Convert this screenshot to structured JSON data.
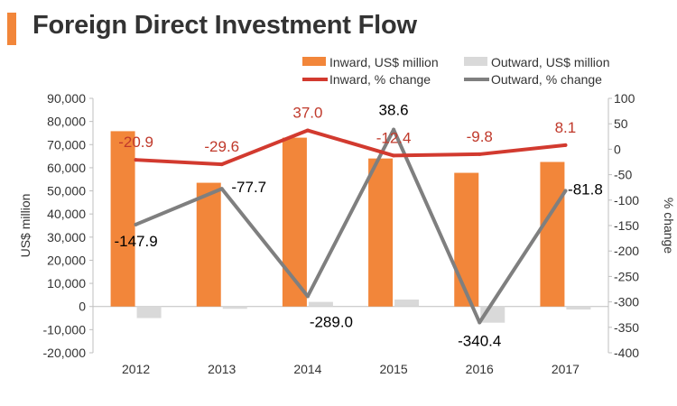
{
  "colors": {
    "inward": "#F2863A",
    "outward": "#D9D9D9",
    "inward_line": "#D23A2F",
    "outward_line": "#7F7F7F",
    "title_bar": "#F2863A",
    "axis": "#BFBFBF",
    "text": "#333333",
    "inward_label": "#C0392B",
    "outward_label": "#000000"
  },
  "chart_data": {
    "type": "bar",
    "title": "Foreign Direct Investment Flow",
    "categories": [
      "2012",
      "2013",
      "2014",
      "2015",
      "2016",
      "2017"
    ],
    "series": [
      {
        "name": "Inward, US$ million",
        "kind": "bar",
        "axis": "left",
        "values": [
          75800,
          53500,
          73000,
          64000,
          57800,
          62500
        ]
      },
      {
        "name": "Outward, US$ million",
        "kind": "bar",
        "axis": "left",
        "values": [
          -5000,
          -1000,
          2000,
          3000,
          -7000,
          -1300
        ]
      },
      {
        "name": "Inward, % change",
        "kind": "line",
        "axis": "right",
        "values": [
          -20.9,
          -29.6,
          37.0,
          -12.4,
          -9.8,
          8.1
        ],
        "labels": [
          "-20.9",
          "-29.6",
          "37.0",
          "-12.4",
          "-9.8",
          "8.1"
        ]
      },
      {
        "name": "Outward, % change",
        "kind": "line",
        "axis": "right",
        "values": [
          -147.9,
          -77.7,
          -289.0,
          38.6,
          -340.4,
          -81.8
        ],
        "labels": [
          "-147.9",
          "-77.7",
          "-289.0",
          "38.6",
          "-340.4",
          "-81.8"
        ]
      }
    ],
    "ylabel": "US$ million",
    "y2label": "% change",
    "ylim": [
      -20000,
      90000
    ],
    "yticks": [
      -20000,
      -10000,
      0,
      10000,
      20000,
      30000,
      40000,
      50000,
      60000,
      70000,
      80000,
      90000
    ],
    "ytick_labels": [
      "-20,000",
      "-10,000",
      "0",
      "10,000",
      "20,000",
      "30,000",
      "40,000",
      "50,000",
      "60,000",
      "70,000",
      "80,000",
      "90,000"
    ],
    "y2lim": [
      -400,
      100
    ],
    "y2ticks": [
      -400,
      -350,
      -300,
      -250,
      -200,
      -150,
      -100,
      -50,
      0,
      50,
      100
    ],
    "y2tick_labels": [
      "-400",
      "-350",
      "-300",
      "-250",
      "-200",
      "-150",
      "-100",
      "-50",
      "0",
      "50",
      "100"
    ],
    "legend_position": "top-right",
    "grid": false
  }
}
